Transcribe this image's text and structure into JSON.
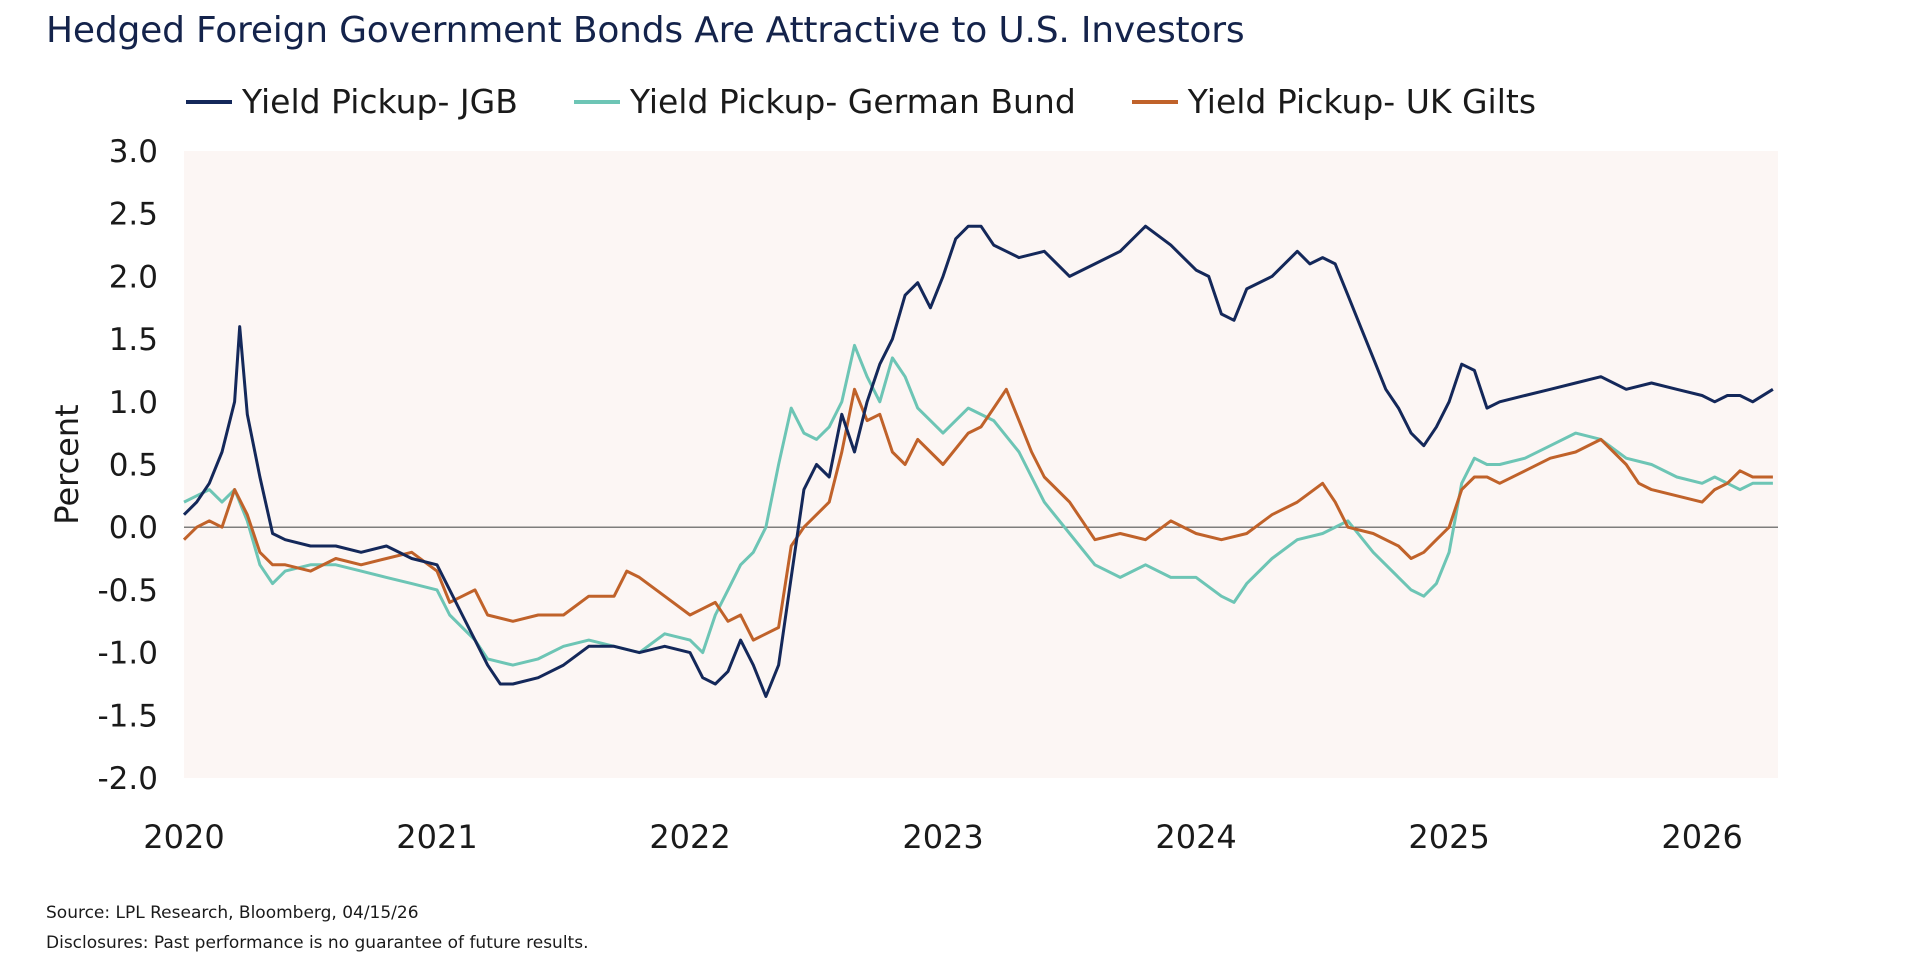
{
  "title": "Hedged Foreign Government Bonds Are Attractive to U.S. Investors",
  "source": "Source: LPL Research, Bloomberg, 04/15/26",
  "disclosure": "Disclosures: Past performance is no guarantee of future results.",
  "chart_data": {
    "type": "line",
    "title": "Hedged Foreign Government Bonds Are Attractive to U.S. Investors",
    "ylabel": "Percent",
    "xlabel": "",
    "ylim": [
      -2.0,
      3.0
    ],
    "yticks": [
      "3.0",
      "2.5",
      "2.0",
      "1.5",
      "1.0",
      "0.5",
      "0.0",
      "-0.5",
      "-1.0",
      "-1.5",
      "-2.0"
    ],
    "ytick_values": [
      3.0,
      2.5,
      2.0,
      1.5,
      1.0,
      0.5,
      0.0,
      -0.5,
      -1.0,
      -1.5,
      -2.0
    ],
    "xticks": [
      "2020",
      "2021",
      "2022",
      "2023",
      "2024",
      "2025",
      "2026"
    ],
    "xtick_values": [
      2020,
      2021,
      2022,
      2023,
      2024,
      2025,
      2026
    ],
    "xlim": [
      2020.0,
      2026.3
    ],
    "zero_line": true,
    "grid": false,
    "legend_position": "top",
    "plot_background": "#fcf6f4",
    "series": [
      {
        "name": "Yield Pickup- JGB",
        "color": "#14285a",
        "x": [
          2020.0,
          2020.05,
          2020.1,
          2020.15,
          2020.2,
          2020.22,
          2020.25,
          2020.3,
          2020.35,
          2020.4,
          2020.5,
          2020.6,
          2020.7,
          2020.8,
          2020.9,
          2021.0,
          2021.05,
          2021.1,
          2021.15,
          2021.2,
          2021.25,
          2021.3,
          2021.4,
          2021.5,
          2021.6,
          2021.7,
          2021.8,
          2021.9,
          2022.0,
          2022.05,
          2022.1,
          2022.15,
          2022.2,
          2022.25,
          2022.3,
          2022.35,
          2022.4,
          2022.45,
          2022.5,
          2022.55,
          2022.6,
          2022.65,
          2022.7,
          2022.75,
          2022.8,
          2022.85,
          2022.9,
          2022.95,
          2023.0,
          2023.05,
          2023.1,
          2023.15,
          2023.2,
          2023.25,
          2023.3,
          2023.4,
          2023.5,
          2023.6,
          2023.7,
          2023.8,
          2023.9,
          2024.0,
          2024.05,
          2024.1,
          2024.15,
          2024.2,
          2024.3,
          2024.4,
          2024.45,
          2024.5,
          2024.55,
          2024.6,
          2024.65,
          2024.7,
          2024.75,
          2024.8,
          2024.85,
          2024.9,
          2024.95,
          2025.0,
          2025.05,
          2025.1,
          2025.15,
          2025.2,
          2025.3,
          2025.4,
          2025.5,
          2025.6,
          2025.7,
          2025.8,
          2025.9,
          2026.0,
          2026.05,
          2026.1,
          2026.15,
          2026.2,
          2026.28
        ],
        "values": [
          0.1,
          0.2,
          0.35,
          0.6,
          1.0,
          1.6,
          0.9,
          0.4,
          -0.05,
          -0.1,
          -0.15,
          -0.15,
          -0.2,
          -0.15,
          -0.25,
          -0.3,
          -0.5,
          -0.7,
          -0.9,
          -1.1,
          -1.25,
          -1.25,
          -1.2,
          -1.1,
          -0.95,
          -0.95,
          -1.0,
          -0.95,
          -1.0,
          -1.2,
          -1.25,
          -1.15,
          -0.9,
          -1.1,
          -1.35,
          -1.1,
          -0.4,
          0.3,
          0.5,
          0.4,
          0.9,
          0.6,
          1.0,
          1.3,
          1.5,
          1.85,
          1.95,
          1.75,
          2.0,
          2.3,
          2.4,
          2.4,
          2.25,
          2.2,
          2.15,
          2.2,
          2.0,
          2.1,
          2.2,
          2.4,
          2.25,
          2.05,
          2.0,
          1.7,
          1.65,
          1.9,
          2.0,
          2.2,
          2.1,
          2.15,
          2.1,
          1.85,
          1.6,
          1.35,
          1.1,
          0.95,
          0.75,
          0.65,
          0.8,
          1.0,
          1.3,
          1.25,
          0.95,
          1.0,
          1.05,
          1.1,
          1.15,
          1.2,
          1.1,
          1.15,
          1.1,
          1.05,
          1.0,
          1.05,
          1.05,
          1.0,
          1.1
        ]
      },
      {
        "name": "Yield Pickup- German Bund",
        "color": "#6dc5b5",
        "x": [
          2020.0,
          2020.05,
          2020.1,
          2020.15,
          2020.2,
          2020.25,
          2020.3,
          2020.35,
          2020.4,
          2020.5,
          2020.6,
          2020.7,
          2020.8,
          2020.9,
          2021.0,
          2021.05,
          2021.1,
          2021.15,
          2021.2,
          2021.3,
          2021.4,
          2021.5,
          2021.6,
          2021.7,
          2021.8,
          2021.9,
          2022.0,
          2022.05,
          2022.1,
          2022.15,
          2022.2,
          2022.25,
          2022.3,
          2022.35,
          2022.4,
          2022.45,
          2022.5,
          2022.55,
          2022.6,
          2022.65,
          2022.7,
          2022.75,
          2022.8,
          2022.85,
          2022.9,
          2022.95,
          2023.0,
          2023.1,
          2023.2,
          2023.3,
          2023.35,
          2023.4,
          2023.5,
          2023.6,
          2023.7,
          2023.8,
          2023.9,
          2024.0,
          2024.1,
          2024.15,
          2024.2,
          2024.3,
          2024.4,
          2024.5,
          2024.6,
          2024.7,
          2024.8,
          2024.85,
          2024.9,
          2024.95,
          2025.0,
          2025.05,
          2025.1,
          2025.15,
          2025.2,
          2025.3,
          2025.4,
          2025.5,
          2025.6,
          2025.7,
          2025.8,
          2025.9,
          2026.0,
          2026.05,
          2026.1,
          2026.15,
          2026.2,
          2026.28
        ],
        "values": [
          0.2,
          0.25,
          0.3,
          0.2,
          0.3,
          0.05,
          -0.3,
          -0.45,
          -0.35,
          -0.3,
          -0.3,
          -0.35,
          -0.4,
          -0.45,
          -0.5,
          -0.7,
          -0.8,
          -0.9,
          -1.05,
          -1.1,
          -1.05,
          -0.95,
          -0.9,
          -0.95,
          -1.0,
          -0.85,
          -0.9,
          -1.0,
          -0.7,
          -0.5,
          -0.3,
          -0.2,
          0.0,
          0.5,
          0.95,
          0.75,
          0.7,
          0.8,
          1.0,
          1.45,
          1.2,
          1.0,
          1.35,
          1.2,
          0.95,
          0.85,
          0.75,
          0.95,
          0.85,
          0.6,
          0.4,
          0.2,
          -0.05,
          -0.3,
          -0.4,
          -0.3,
          -0.4,
          -0.4,
          -0.55,
          -0.6,
          -0.45,
          -0.25,
          -0.1,
          -0.05,
          0.05,
          -0.2,
          -0.4,
          -0.5,
          -0.55,
          -0.45,
          -0.2,
          0.35,
          0.55,
          0.5,
          0.5,
          0.55,
          0.65,
          0.75,
          0.7,
          0.55,
          0.5,
          0.4,
          0.35,
          0.4,
          0.35,
          0.3,
          0.35,
          0.35
        ]
      },
      {
        "name": "Yield Pickup- UK Gilts",
        "color": "#c0622a",
        "x": [
          2020.0,
          2020.05,
          2020.1,
          2020.15,
          2020.2,
          2020.25,
          2020.3,
          2020.35,
          2020.4,
          2020.5,
          2020.6,
          2020.7,
          2020.8,
          2020.9,
          2021.0,
          2021.05,
          2021.1,
          2021.15,
          2021.2,
          2021.3,
          2021.4,
          2021.5,
          2021.6,
          2021.7,
          2021.75,
          2021.8,
          2021.9,
          2022.0,
          2022.05,
          2022.1,
          2022.15,
          2022.2,
          2022.25,
          2022.3,
          2022.35,
          2022.4,
          2022.45,
          2022.5,
          2022.55,
          2022.6,
          2022.65,
          2022.7,
          2022.75,
          2022.8,
          2022.85,
          2022.9,
          2022.95,
          2023.0,
          2023.1,
          2023.15,
          2023.2,
          2023.25,
          2023.3,
          2023.35,
          2023.4,
          2023.5,
          2023.6,
          2023.7,
          2023.8,
          2023.9,
          2024.0,
          2024.1,
          2024.2,
          2024.3,
          2024.4,
          2024.5,
          2024.55,
          2024.6,
          2024.7,
          2024.8,
          2024.85,
          2024.9,
          2024.95,
          2025.0,
          2025.05,
          2025.1,
          2025.15,
          2025.2,
          2025.3,
          2025.4,
          2025.5,
          2025.6,
          2025.7,
          2025.75,
          2025.8,
          2025.9,
          2026.0,
          2026.05,
          2026.1,
          2026.15,
          2026.2,
          2026.28
        ],
        "values": [
          -0.1,
          0.0,
          0.05,
          0.0,
          0.3,
          0.1,
          -0.2,
          -0.3,
          -0.3,
          -0.35,
          -0.25,
          -0.3,
          -0.25,
          -0.2,
          -0.35,
          -0.6,
          -0.55,
          -0.5,
          -0.7,
          -0.75,
          -0.7,
          -0.7,
          -0.55,
          -0.55,
          -0.35,
          -0.4,
          -0.55,
          -0.7,
          -0.65,
          -0.6,
          -0.75,
          -0.7,
          -0.9,
          -0.85,
          -0.8,
          -0.15,
          0.0,
          0.1,
          0.2,
          0.6,
          1.1,
          0.85,
          0.9,
          0.6,
          0.5,
          0.7,
          0.6,
          0.5,
          0.75,
          0.8,
          0.95,
          1.1,
          0.85,
          0.6,
          0.4,
          0.2,
          -0.1,
          -0.05,
          -0.1,
          0.05,
          -0.05,
          -0.1,
          -0.05,
          0.1,
          0.2,
          0.35,
          0.2,
          0.0,
          -0.05,
          -0.15,
          -0.25,
          -0.2,
          -0.1,
          0.0,
          0.3,
          0.4,
          0.4,
          0.35,
          0.45,
          0.55,
          0.6,
          0.7,
          0.5,
          0.35,
          0.3,
          0.25,
          0.2,
          0.3,
          0.35,
          0.45,
          0.4,
          0.4
        ]
      }
    ]
  }
}
